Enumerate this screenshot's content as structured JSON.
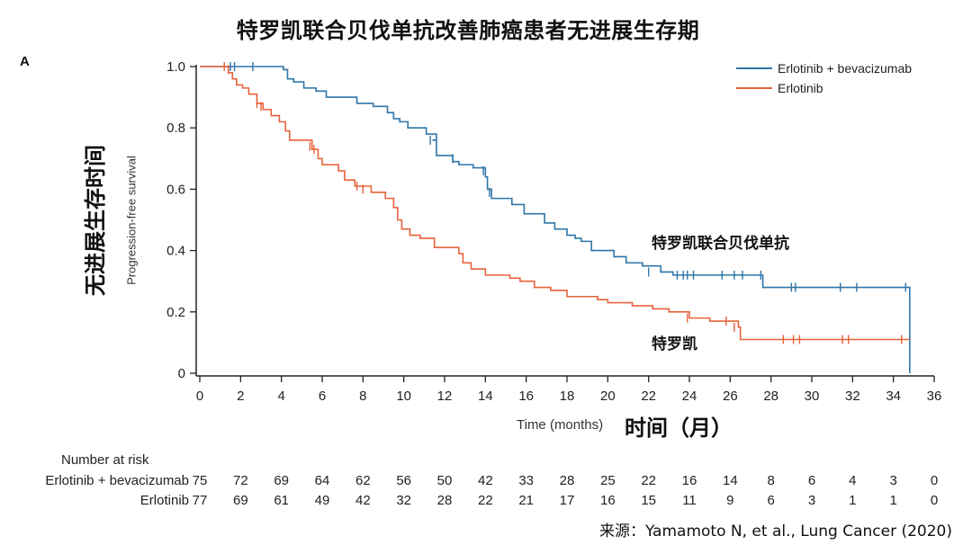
{
  "title": "特罗凯联合贝伐单抗改善肺癌患者无进展生存期",
  "panel_label": "A",
  "source": "来源：Yamamoto N, et al., Lung Cancer (2020)",
  "chart_data": {
    "type": "line",
    "step": true,
    "xlabel": "Time (months)",
    "xlabel_cn": "时间（月）",
    "ylabel": "Progression-free survival",
    "ylabel_cn": "无进展生存时间",
    "xlim": [
      0,
      36
    ],
    "ylim": [
      0,
      1.0
    ],
    "x_ticks": [
      0,
      2,
      4,
      6,
      8,
      10,
      12,
      14,
      16,
      18,
      20,
      22,
      24,
      26,
      28,
      30,
      32,
      34,
      36
    ],
    "y_ticks": [
      0,
      0.2,
      0.4,
      0.6,
      0.8,
      1.0
    ],
    "y_tick_labels": [
      "0",
      "0.2",
      "0.4",
      "0.6",
      "0.8",
      "1.0"
    ],
    "grid": false,
    "legend": {
      "placement": "top-right"
    },
    "series": [
      {
        "name": "Erlotinib + bevacizumab",
        "annotation": "特罗凯联合贝伐单抗",
        "color": "#2e75a8",
        "steps": [
          [
            0,
            1.0
          ],
          [
            4.1,
            0.99
          ],
          [
            4.3,
            0.96
          ],
          [
            4.6,
            0.95
          ],
          [
            5.1,
            0.93
          ],
          [
            5.7,
            0.92
          ],
          [
            6.2,
            0.9
          ],
          [
            7.7,
            0.88
          ],
          [
            8.5,
            0.87
          ],
          [
            9.2,
            0.85
          ],
          [
            9.5,
            0.83
          ],
          [
            9.8,
            0.82
          ],
          [
            10.2,
            0.8
          ],
          [
            11.1,
            0.78
          ],
          [
            11.6,
            0.76
          ],
          [
            11.4,
            0.76
          ],
          [
            11.6,
            0.71
          ],
          [
            12.4,
            0.69
          ],
          [
            12.7,
            0.68
          ],
          [
            13.4,
            0.67
          ],
          [
            14.0,
            0.64
          ],
          [
            14.1,
            0.6
          ],
          [
            14.3,
            0.57
          ],
          [
            15.3,
            0.55
          ],
          [
            15.9,
            0.52
          ],
          [
            16.9,
            0.49
          ],
          [
            17.4,
            0.47
          ],
          [
            18.0,
            0.45
          ],
          [
            18.4,
            0.44
          ],
          [
            18.7,
            0.43
          ],
          [
            19.2,
            0.4
          ],
          [
            20.3,
            0.38
          ],
          [
            20.9,
            0.36
          ],
          [
            21.7,
            0.35
          ],
          [
            22.6,
            0.33
          ],
          [
            23.2,
            0.32
          ],
          [
            27.6,
            0.28
          ],
          [
            34.8,
            0.0
          ]
        ],
        "censors": [
          [
            1.5,
            1.0
          ],
          [
            1.7,
            1.0
          ],
          [
            2.6,
            1.0
          ],
          [
            11.3,
            0.76
          ],
          [
            12.4,
            0.7
          ],
          [
            13.9,
            0.66
          ],
          [
            14.2,
            0.59
          ],
          [
            22.0,
            0.33
          ],
          [
            23.4,
            0.32
          ],
          [
            23.7,
            0.32
          ],
          [
            23.9,
            0.32
          ],
          [
            24.2,
            0.32
          ],
          [
            25.6,
            0.32
          ],
          [
            26.2,
            0.32
          ],
          [
            26.6,
            0.32
          ],
          [
            27.5,
            0.32
          ],
          [
            29.0,
            0.28
          ],
          [
            29.2,
            0.28
          ],
          [
            31.4,
            0.28
          ],
          [
            32.2,
            0.28
          ],
          [
            34.6,
            0.28
          ]
        ]
      },
      {
        "name": "Erlotinib",
        "annotation": "特罗凯",
        "color": "#e8623a",
        "steps": [
          [
            0,
            1.0
          ],
          [
            1.4,
            0.98
          ],
          [
            1.6,
            0.96
          ],
          [
            1.8,
            0.94
          ],
          [
            2.1,
            0.93
          ],
          [
            2.4,
            0.91
          ],
          [
            2.8,
            0.88
          ],
          [
            3.1,
            0.86
          ],
          [
            3.5,
            0.84
          ],
          [
            3.9,
            0.82
          ],
          [
            4.2,
            0.79
          ],
          [
            4.4,
            0.76
          ],
          [
            5.5,
            0.73
          ],
          [
            5.8,
            0.7
          ],
          [
            6.0,
            0.68
          ],
          [
            6.8,
            0.66
          ],
          [
            7.1,
            0.63
          ],
          [
            7.6,
            0.61
          ],
          [
            8.4,
            0.59
          ],
          [
            9.1,
            0.57
          ],
          [
            9.5,
            0.54
          ],
          [
            9.7,
            0.5
          ],
          [
            9.9,
            0.47
          ],
          [
            10.3,
            0.45
          ],
          [
            10.8,
            0.44
          ],
          [
            11.5,
            0.41
          ],
          [
            12.7,
            0.39
          ],
          [
            12.9,
            0.36
          ],
          [
            13.3,
            0.34
          ],
          [
            14.0,
            0.32
          ],
          [
            15.2,
            0.31
          ],
          [
            15.7,
            0.3
          ],
          [
            16.4,
            0.28
          ],
          [
            17.2,
            0.27
          ],
          [
            18.0,
            0.25
          ],
          [
            19.5,
            0.24
          ],
          [
            20.0,
            0.23
          ],
          [
            21.2,
            0.22
          ],
          [
            22.2,
            0.21
          ],
          [
            23.0,
            0.2
          ],
          [
            24.0,
            0.18
          ],
          [
            25.0,
            0.17
          ],
          [
            26.4,
            0.15
          ],
          [
            26.5,
            0.11
          ],
          [
            34.8,
            0.11
          ]
        ],
        "censors": [
          [
            1.2,
            1.0
          ],
          [
            1.4,
            0.99
          ],
          [
            2.8,
            0.88
          ],
          [
            3.0,
            0.87
          ],
          [
            5.4,
            0.74
          ],
          [
            5.6,
            0.73
          ],
          [
            7.7,
            0.61
          ],
          [
            8.0,
            0.6
          ],
          [
            23.9,
            0.18
          ],
          [
            25.8,
            0.17
          ],
          [
            26.2,
            0.15
          ],
          [
            28.6,
            0.11
          ],
          [
            29.1,
            0.11
          ],
          [
            29.4,
            0.11
          ],
          [
            31.5,
            0.11
          ],
          [
            31.8,
            0.11
          ],
          [
            34.4,
            0.11
          ]
        ]
      }
    ]
  },
  "risk_table": {
    "heading": "Number at risk",
    "rows": [
      {
        "label": "Erlotinib + bevacizumab",
        "values": [
          "75",
          "72",
          "69",
          "64",
          "62",
          "56",
          "50",
          "42",
          "33",
          "28",
          "25",
          "22",
          "16",
          "14",
          "8",
          "6",
          "4",
          "3",
          "0"
        ]
      },
      {
        "label": "Erlotinib",
        "values": [
          "77",
          "69",
          "61",
          "49",
          "42",
          "32",
          "28",
          "22",
          "21",
          "17",
          "16",
          "15",
          "11",
          "9",
          "6",
          "3",
          "1",
          "1",
          "0"
        ]
      }
    ]
  }
}
